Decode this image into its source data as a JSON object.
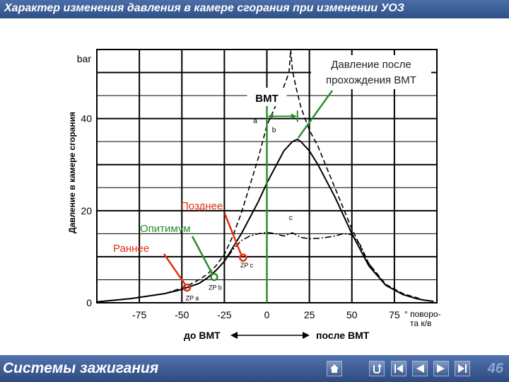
{
  "slide": {
    "title": "Характер изменения давления в камере сгорания при изменении УОЗ",
    "footer_title": "Системы зажигания",
    "page_number": "46"
  },
  "navigation": {
    "buttons": [
      "home-icon",
      "return-icon",
      "first-slide-icon",
      "previous-slide-icon",
      "next-slide-icon",
      "last-slide-icon"
    ]
  },
  "colors": {
    "header_bar": "#2f4f86",
    "green_annotation": "#2e8b2e",
    "red_annotation": "#e03010"
  },
  "chart_data": {
    "type": "line",
    "title": "",
    "ylabel": "Давление в камере сгорания",
    "y_unit": "bar",
    "xlabel_after_ticks": "° поворо-та к/в",
    "xlim": [
      -100,
      100
    ],
    "ylim": [
      0,
      55
    ],
    "x_ticks": [
      "-75",
      "-50",
      "-25",
      "0",
      "25",
      "50",
      "75"
    ],
    "y_ticks": [
      "0",
      "20",
      "40"
    ],
    "grid": true,
    "series": [
      {
        "name": "a",
        "style": "dashed",
        "x": [
          -100,
          -80,
          -60,
          -50,
          -45,
          -40,
          -35,
          -30,
          -25,
          -20,
          -15,
          -10,
          -5,
          0,
          3,
          6,
          10,
          13,
          14,
          15,
          17,
          20,
          22,
          25,
          30,
          40,
          50,
          60,
          70,
          80,
          88,
          92,
          98
        ],
        "y": [
          0.2,
          0.9,
          2.0,
          3.2,
          4.0,
          5.0,
          6.2,
          8.0,
          10.5,
          14.5,
          19.5,
          25.5,
          31.5,
          38.5,
          41,
          43.5,
          47,
          50,
          55,
          50.5,
          47,
          42.5,
          40.5,
          37.5,
          34,
          25,
          16,
          8.5,
          4,
          2,
          1.1,
          0.6,
          0.3
        ]
      },
      {
        "name": "b",
        "style": "solid",
        "x": [
          -100,
          -80,
          -60,
          -50,
          -40,
          -35,
          -30,
          -25,
          -20,
          -15,
          -10,
          -5,
          0,
          5,
          10,
          15,
          18,
          20,
          25,
          30,
          40,
          50,
          60,
          70,
          80,
          88,
          92,
          98
        ],
        "y": [
          0.2,
          0.9,
          2.0,
          2.9,
          4.2,
          5.4,
          7.0,
          9.0,
          12.0,
          15.0,
          18.5,
          22.0,
          26.0,
          29.5,
          33.0,
          35.0,
          35.5,
          35.0,
          33.0,
          30.0,
          23.0,
          15.0,
          8.0,
          3.8,
          1.8,
          0.9,
          0.6,
          0.3
        ]
      },
      {
        "name": "c",
        "style": "dash-dot",
        "x": [
          -100,
          -80,
          -60,
          -50,
          -40,
          -35,
          -30,
          -25,
          -20,
          -15,
          -10,
          -5,
          0,
          5,
          10,
          15,
          20,
          25,
          30,
          35,
          40,
          45,
          50,
          55,
          60,
          70,
          80,
          88,
          92,
          98
        ],
        "y": [
          0.2,
          0.9,
          2.0,
          2.9,
          4.2,
          5.4,
          7.0,
          9.0,
          11.5,
          13.5,
          14.5,
          15.0,
          15.3,
          15.0,
          14.5,
          15.2,
          14.2,
          13.9,
          14.0,
          14.2,
          14.5,
          15.0,
          14.8,
          12.5,
          8.5,
          3.8,
          1.8,
          0.9,
          0.6,
          0.3
        ]
      }
    ],
    "ignition_points": [
      {
        "label": "ZP a",
        "x": -47,
        "y": 3.3
      },
      {
        "label": "ZP b",
        "x": -31,
        "y": 5.6
      },
      {
        "label": "ZP c",
        "x": -14,
        "y": 9.8
      }
    ],
    "annotations": {
      "late": "Позднее",
      "optimum": "Опитимум",
      "early": "Раннее",
      "tdc": "ВМТ",
      "peak_after_tdc": "Давление после прохождения ВМТ",
      "before_tdc": "до ВМТ",
      "after_tdc": "после ВМТ"
    }
  }
}
